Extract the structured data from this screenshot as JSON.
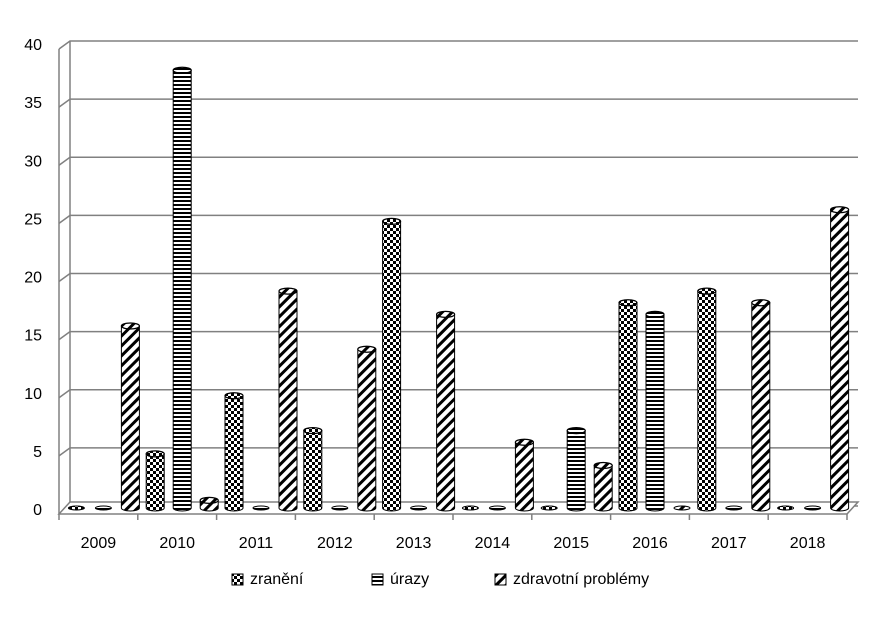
{
  "chart_data": {
    "type": "bar",
    "title": "",
    "xlabel": "",
    "ylabel": "",
    "categories": [
      "2009",
      "2010",
      "2011",
      "2012",
      "2013",
      "2014",
      "2015",
      "2016",
      "2017",
      "2018"
    ],
    "ylim": [
      0,
      40
    ],
    "yticks": [
      "0",
      "5",
      "10",
      "15",
      "20",
      "25",
      "30",
      "35",
      "40"
    ],
    "grid": true,
    "legend_position": "bottom",
    "series": [
      {
        "name": "zranění",
        "pattern": "checker",
        "values": [
          0,
          5,
          10,
          7,
          25,
          0,
          0,
          18,
          19,
          0
        ]
      },
      {
        "name": "úrazy",
        "pattern": "horizontal-stripes",
        "values": [
          0,
          38,
          0,
          0,
          0,
          0,
          7,
          17,
          0,
          0
        ]
      },
      {
        "name": "zdravotní problémy",
        "pattern": "diagonal-stripes",
        "values": [
          16,
          1,
          19,
          14,
          17,
          6,
          4,
          0,
          18,
          26
        ]
      }
    ],
    "colors": {
      "bar_ink": "#000000",
      "bar_bg": "#ffffff",
      "grid": "#808080"
    }
  }
}
